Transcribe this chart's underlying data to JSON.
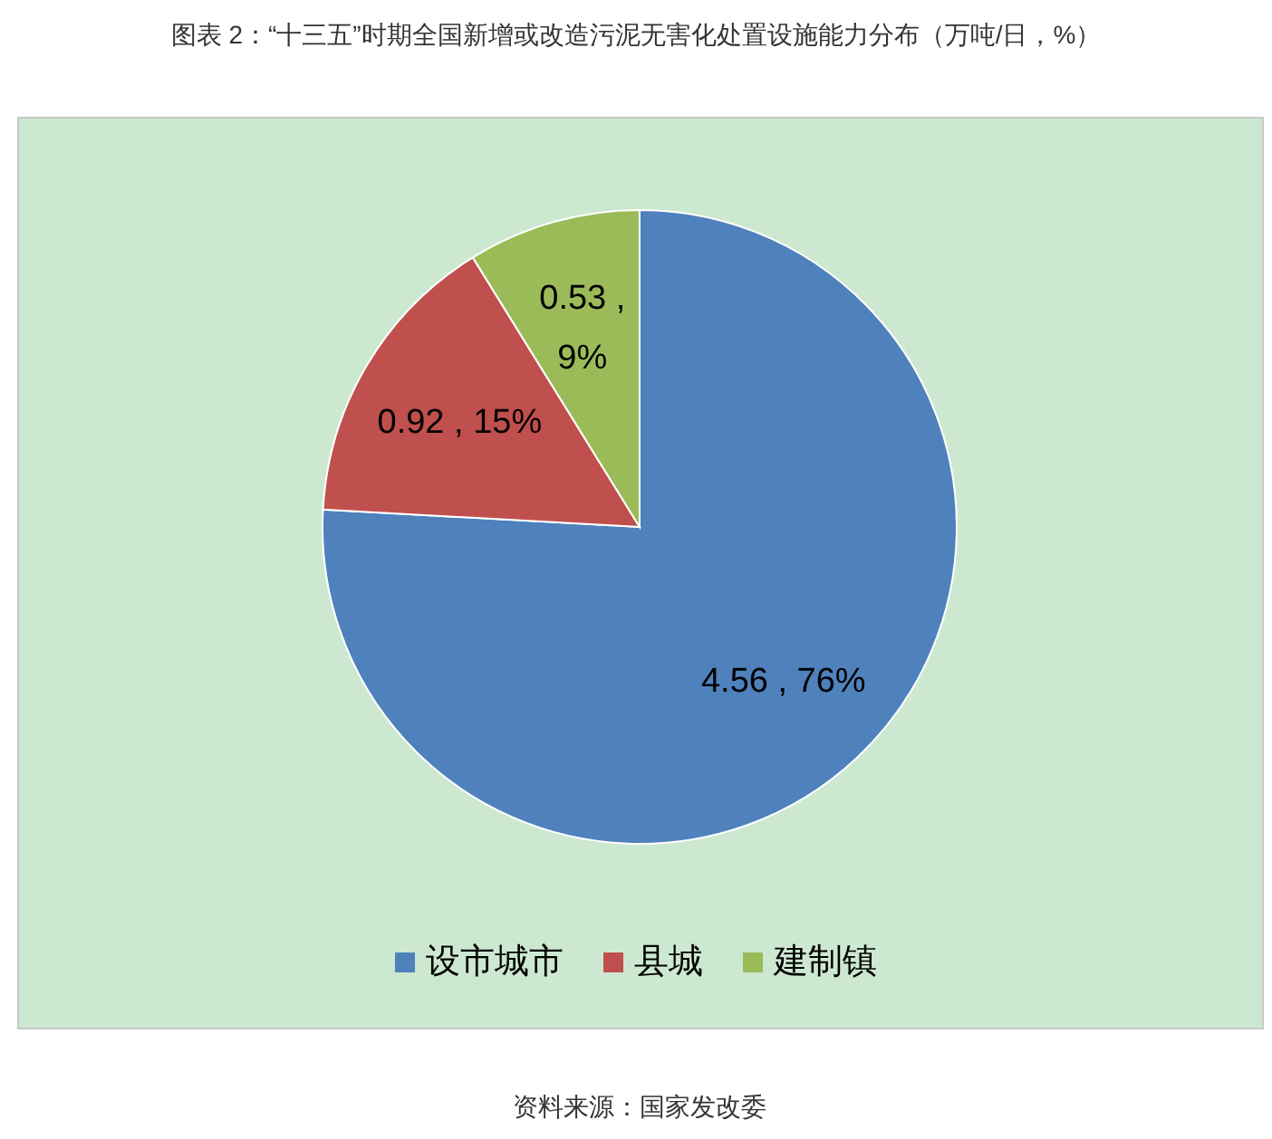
{
  "chart_data": {
    "type": "pie",
    "title": "图表 2：“十三五”时期全国新增或改造污泥无害化处置设施能力分布（万吨/日，%）",
    "categories": [
      "设市城市",
      "县城",
      "建制镇"
    ],
    "values": [
      4.56,
      0.92,
      0.53
    ],
    "colors": [
      "#4f81bd",
      "#c0504d",
      "#9bbb59"
    ],
    "value_labels": [
      "4.56 , 76%",
      "0.92 , 15%",
      "0.53 , 9%"
    ],
    "legend": "bottom",
    "annotations": [
      "资料来源：国家发改委"
    ]
  }
}
